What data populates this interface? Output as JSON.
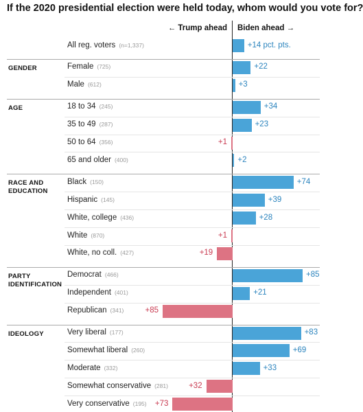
{
  "title": "If the 2020 presidential election were held today, whom would you vote for?",
  "direction_labels": {
    "left": "← Trump ahead",
    "right": "Biden ahead →"
  },
  "colors": {
    "biden": "#4aa4d8",
    "trump": "#dd7383",
    "biden_text": "#2a83bd",
    "trump_text": "#c93a50"
  },
  "chart_data": {
    "type": "bar",
    "orientation": "horizontal-diverging",
    "title": "If the 2020 presidential election were held today, whom would you vote for?",
    "xlabel": "",
    "ylabel": "",
    "grid": false,
    "groups": [
      {
        "name": "",
        "rows": [
          {
            "label": "All reg. voters",
            "n": "(n=1,337)",
            "winner": "biden",
            "value": 14,
            "value_label": "+14 pct. pts."
          }
        ]
      },
      {
        "name": "GENDER",
        "rows": [
          {
            "label": "Female",
            "n": "(725)",
            "winner": "biden",
            "value": 22,
            "value_label": "+22"
          },
          {
            "label": "Male",
            "n": "(612)",
            "winner": "biden",
            "value": 3,
            "value_label": "+3"
          }
        ]
      },
      {
        "name": "AGE",
        "rows": [
          {
            "label": "18 to 34",
            "n": "(245)",
            "winner": "biden",
            "value": 34,
            "value_label": "+34"
          },
          {
            "label": "35 to 49",
            "n": "(287)",
            "winner": "biden",
            "value": 23,
            "value_label": "+23"
          },
          {
            "label": "50 to 64",
            "n": "(356)",
            "winner": "trump",
            "value": 1,
            "value_label": "+1"
          },
          {
            "label": "65 and older",
            "n": "(400)",
            "winner": "biden",
            "value": 2,
            "value_label": "+2"
          }
        ]
      },
      {
        "name": "RACE AND\nEDUCATION",
        "rows": [
          {
            "label": "Black",
            "n": "(150)",
            "winner": "biden",
            "value": 74,
            "value_label": "+74"
          },
          {
            "label": "Hispanic",
            "n": "(145)",
            "winner": "biden",
            "value": 39,
            "value_label": "+39"
          },
          {
            "label": "White, college",
            "n": "(436)",
            "winner": "biden",
            "value": 28,
            "value_label": "+28"
          },
          {
            "label": "White",
            "n": "(870)",
            "winner": "trump",
            "value": 1,
            "value_label": "+1"
          },
          {
            "label": "White, no coll.",
            "n": "(427)",
            "winner": "trump",
            "value": 19,
            "value_label": "+19"
          }
        ]
      },
      {
        "name": "PARTY\nIDENTIFICATION",
        "rows": [
          {
            "label": "Democrat",
            "n": "(466)",
            "winner": "biden",
            "value": 85,
            "value_label": "+85"
          },
          {
            "label": "Independent",
            "n": "(401)",
            "winner": "biden",
            "value": 21,
            "value_label": "+21"
          },
          {
            "label": "Republican",
            "n": "(341)",
            "winner": "trump",
            "value": 85,
            "value_label": "+85"
          }
        ]
      },
      {
        "name": "IDEOLOGY",
        "rows": [
          {
            "label": "Very liberal",
            "n": "(177)",
            "winner": "biden",
            "value": 83,
            "value_label": "+83"
          },
          {
            "label": "Somewhat liberal",
            "n": "(260)",
            "winner": "biden",
            "value": 69,
            "value_label": "+69"
          },
          {
            "label": "Moderate",
            "n": "(332)",
            "winner": "biden",
            "value": 33,
            "value_label": "+33"
          },
          {
            "label": "Somewhat conservative",
            "n": "(281)",
            "winner": "trump",
            "value": 32,
            "value_label": "+32"
          },
          {
            "label": "Very conservative",
            "n": "(195)",
            "winner": "trump",
            "value": 73,
            "value_label": "+73"
          }
        ]
      }
    ]
  }
}
